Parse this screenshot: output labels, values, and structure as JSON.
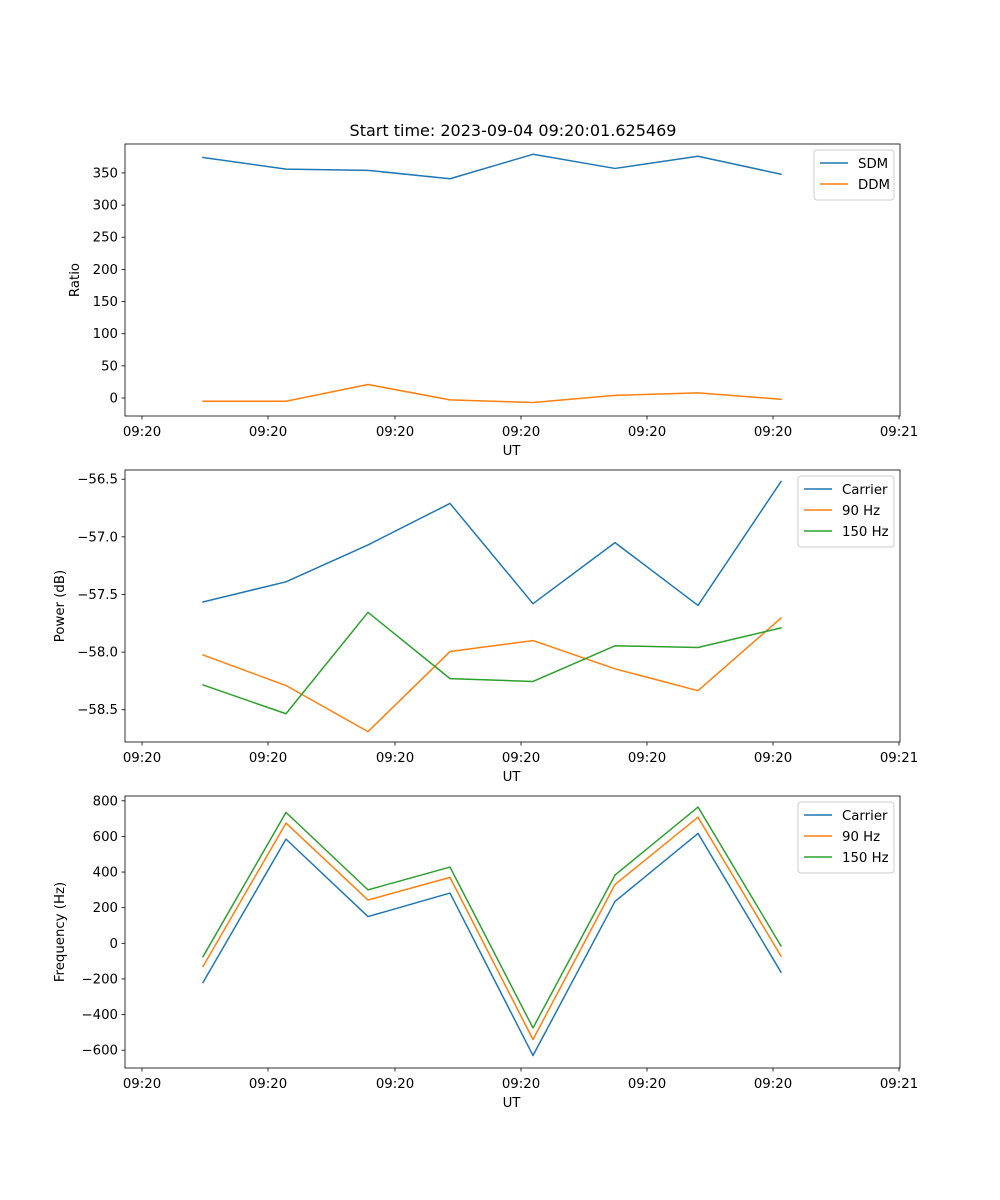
{
  "title": "Start time: 2023-09-04 09:20:01.625469",
  "colors": {
    "blue": "#1f77b4",
    "orange": "#ff7f0e",
    "green": "#2ca02c"
  },
  "chart_data": [
    {
      "type": "line",
      "title": "Start time: 2023-09-04 09:20:01.625469",
      "xlabel": "UT",
      "ylabel": "Ratio",
      "x_tick_labels": [
        "09:20",
        "09:20",
        "09:20",
        "09:20",
        "09:20",
        "09:20",
        "09:20",
        "09:21"
      ],
      "y_ticks": [
        0,
        50,
        100,
        150,
        200,
        250,
        300,
        350
      ],
      "y_tick_labels": [
        "0",
        "50",
        "100",
        "150",
        "200",
        "250",
        "300",
        "350"
      ],
      "ylim": [
        -28,
        395
      ],
      "legend_position": "top-right",
      "series": [
        {
          "name": "SDM",
          "color": "#1f77b4",
          "values": [
            374,
            356,
            354,
            341,
            379,
            357,
            376,
            348
          ]
        },
        {
          "name": "DDM",
          "color": "#ff7f0e",
          "values": [
            -5,
            -5,
            21,
            -3,
            -7,
            4,
            8,
            -2
          ]
        }
      ]
    },
    {
      "type": "line",
      "xlabel": "UT",
      "ylabel": "Power (dB)",
      "x_tick_labels": [
        "09:20",
        "09:20",
        "09:20",
        "09:20",
        "09:20",
        "09:20",
        "09:20",
        "09:21"
      ],
      "y_ticks": [
        -58.5,
        -58.0,
        -57.5,
        -57.0,
        -56.5
      ],
      "y_tick_labels": [
        "−58.5",
        "−58.0",
        "−57.5",
        "−57.0",
        "−56.5"
      ],
      "ylim": [
        -58.78,
        -56.42
      ],
      "legend_position": "top-right",
      "series": [
        {
          "name": "Carrier",
          "color": "#1f77b4",
          "values": [
            -57.565,
            -57.39,
            -57.07,
            -56.71,
            -57.58,
            -57.05,
            -57.595,
            -56.52
          ]
        },
        {
          "name": "90 Hz",
          "color": "#ff7f0e",
          "values": [
            -58.025,
            -58.29,
            -58.69,
            -57.995,
            -57.9,
            -58.145,
            -58.335,
            -57.705
          ]
        },
        {
          "name": "150 Hz",
          "color": "#2ca02c",
          "values": [
            -58.285,
            -58.535,
            -57.655,
            -58.23,
            -58.255,
            -57.945,
            -57.96,
            -57.79
          ]
        }
      ]
    },
    {
      "type": "line",
      "xlabel": "UT",
      "ylabel": "Frequency (Hz)",
      "x_tick_labels": [
        "09:20",
        "09:20",
        "09:20",
        "09:20",
        "09:20",
        "09:20",
        "09:20",
        "09:21"
      ],
      "y_ticks": [
        -600,
        -400,
        -200,
        0,
        200,
        400,
        600,
        800
      ],
      "y_tick_labels": [
        "−600",
        "−400",
        "−200",
        "0",
        "200",
        "400",
        "600",
        "800"
      ],
      "ylim": [
        -700,
        827
      ],
      "legend_position": "top-right",
      "series": [
        {
          "name": "Carrier",
          "color": "#1f77b4",
          "values": [
            -220,
            585,
            150,
            282,
            -630,
            235,
            617,
            -162
          ]
        },
        {
          "name": "90 Hz",
          "color": "#ff7f0e",
          "values": [
            -130,
            675,
            243,
            370,
            -540,
            330,
            708,
            -72
          ]
        },
        {
          "name": "150 Hz",
          "color": "#2ca02c",
          "values": [
            -75,
            735,
            300,
            428,
            -475,
            383,
            765,
            -15
          ]
        }
      ]
    }
  ]
}
